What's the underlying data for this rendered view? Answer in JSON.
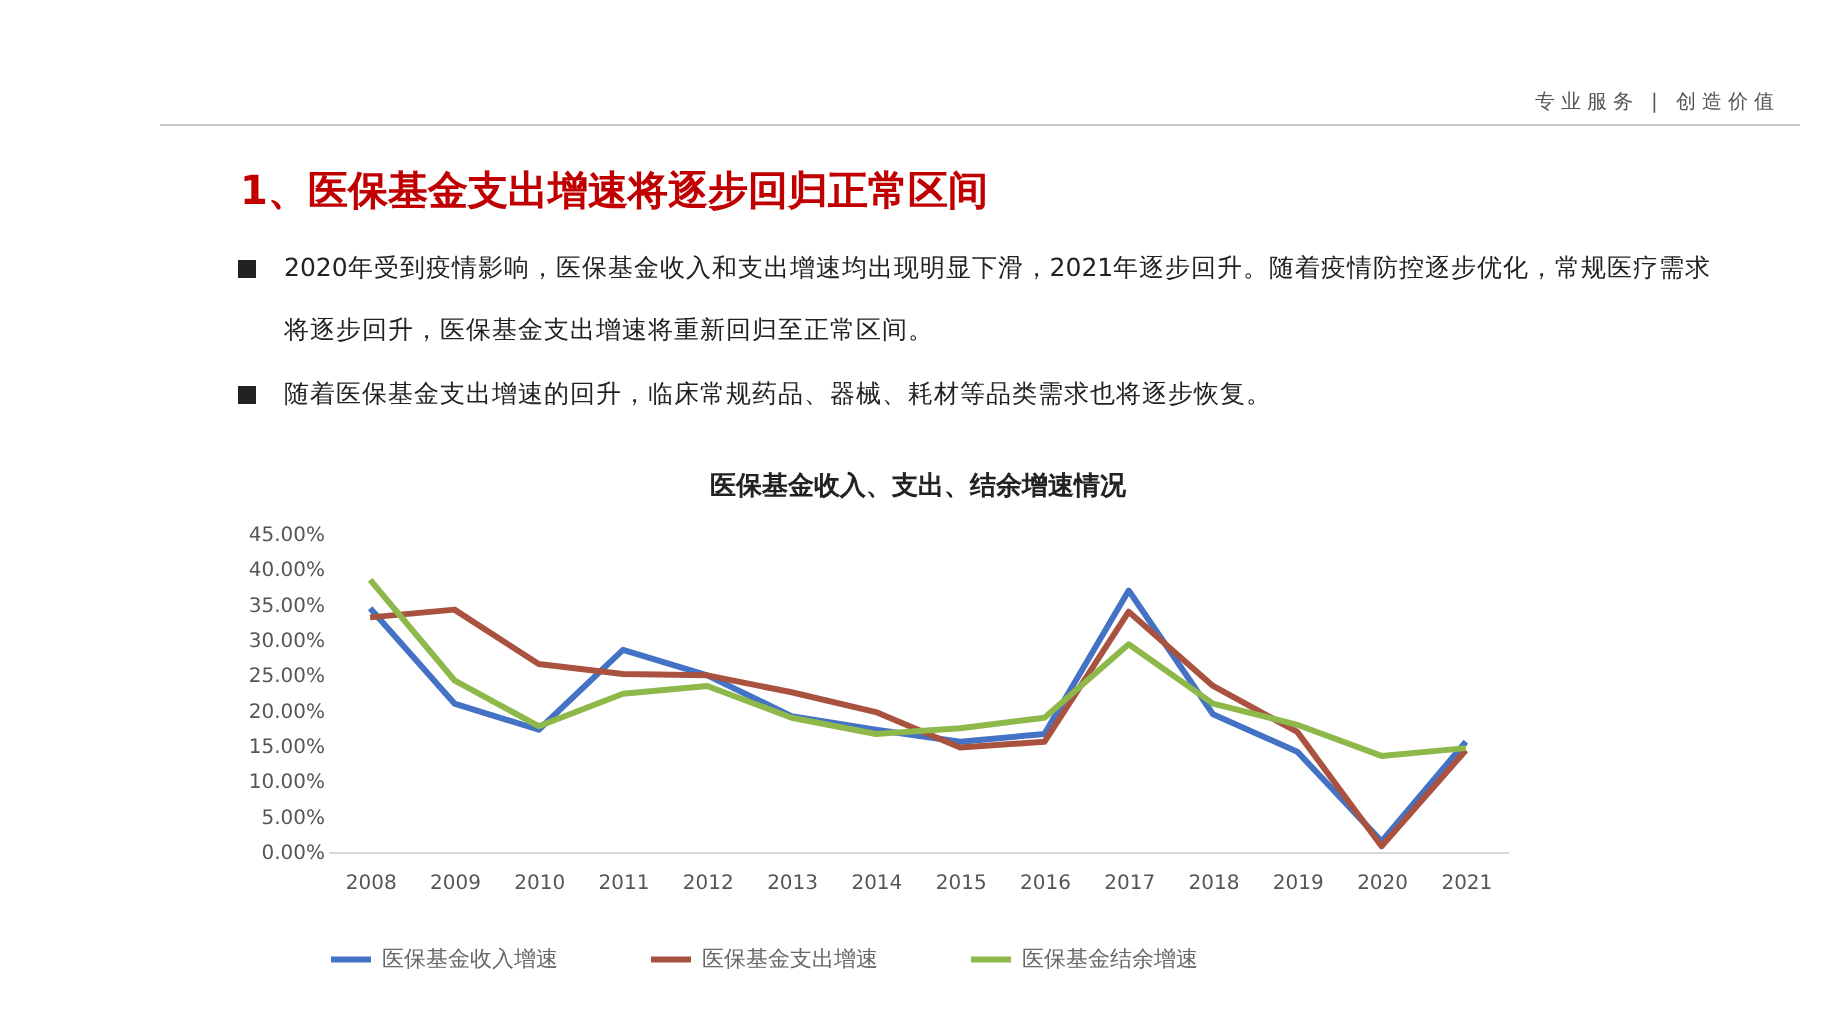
{
  "chart_data": {
    "type": "line",
    "title": "1、医保基金支出增速将逐步回归正常区间",
    "subtitle": "医保基金收入、支出、结余增速情况",
    "annotations": [
      "专业服务 | 创造价值",
      "2020年受到疫情影响，医保基金收入和支出增速均出现明显下滑，2021年逐步回升。随着疫情防控逐步优化，常规医疗需求将逐步回升，医保基金支出增速将重新回归至正常区间。",
      "随着医保基金支出增速的回升，临床常规药品、器械、耗材等品类需求也将逐步恢复。"
    ],
    "categories": [
      "2008",
      "2009",
      "2010",
      "2011",
      "2012",
      "2013",
      "2014",
      "2015",
      "2016",
      "2017",
      "2018",
      "2019",
      "2020",
      "2021"
    ],
    "series": [
      {
        "name": "医保基金收入增速",
        "color": "#4472c4",
        "values": [
          34.5,
          21,
          17.3,
          28.6,
          25,
          19.2,
          17.3,
          15.6,
          16.7,
          37,
          19.5,
          14.2,
          1.5,
          15.6
        ]
      },
      {
        "name": "医保基金支出增速",
        "color": "#a9523f",
        "values": [
          33.2,
          34.3,
          26.6,
          25.2,
          25,
          22.6,
          19.8,
          14.8,
          15.6,
          34,
          23.5,
          17,
          0.8,
          14.4
        ]
      },
      {
        "name": "医保基金结余增速",
        "color": "#8fb84a",
        "values": [
          38.5,
          24.3,
          17.8,
          22.4,
          23.5,
          19,
          16.7,
          17.5,
          19,
          29.4,
          21,
          18,
          13.6,
          14.7
        ]
      }
    ],
    "ylim": [
      0,
      45
    ],
    "yticks": [
      {
        "value": 0,
        "label": "0.00%"
      },
      {
        "value": 5,
        "label": "5.00%"
      },
      {
        "value": 10,
        "label": "10.00%"
      },
      {
        "value": 15,
        "label": "15.00%"
      },
      {
        "value": 20,
        "label": "20.00%"
      },
      {
        "value": 25,
        "label": "25.00%"
      },
      {
        "value": 30,
        "label": "30.00%"
      },
      {
        "value": 35,
        "label": "35.00%"
      },
      {
        "value": 40,
        "label": "40.00%"
      },
      {
        "value": 45,
        "label": "45.00%"
      }
    ],
    "legend": "bottom",
    "marker": "none",
    "line_style": "solid"
  }
}
